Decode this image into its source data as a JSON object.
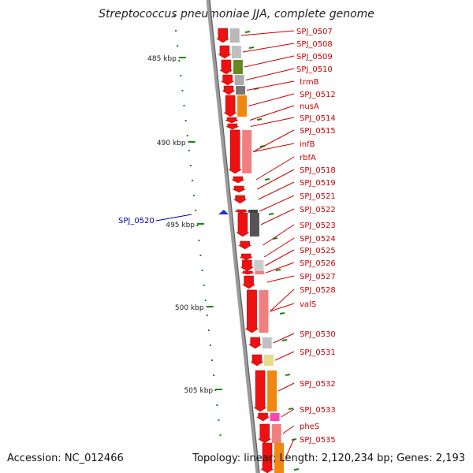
{
  "title": "Streptococcus pneumoniae JJA, complete genome",
  "footer": {
    "accession": "Accession: NC_012466",
    "topology": "Topology: linear; Length: 2,120,234 bp; Genes: 2,193"
  },
  "colors": {
    "cds": "#ee1111",
    "gene_label": "#cc0000",
    "highlight": "#0000aa",
    "tick": "#118811",
    "backbone": "#888888"
  },
  "ruler": {
    "labels": [
      "485 kbp",
      "490 kbp",
      "495 kbp",
      "500 kbp",
      "505 kbp"
    ]
  },
  "highlight_gene": "SPJ_0520",
  "genes": [
    {
      "label": "SPJ_0507"
    },
    {
      "label": "SPJ_0508"
    },
    {
      "label": "SPJ_0509"
    },
    {
      "label": "SPJ_0510"
    },
    {
      "label": "trmB"
    },
    {
      "label": "SPJ_0512"
    },
    {
      "label": "nusA"
    },
    {
      "label": "SPJ_0514"
    },
    {
      "label": "SPJ_0515"
    },
    {
      "label": "infB"
    },
    {
      "label": "rbfA"
    },
    {
      "label": "SPJ_0518"
    },
    {
      "label": "SPJ_0519"
    },
    {
      "label": "SPJ_0521"
    },
    {
      "label": "SPJ_0522"
    },
    {
      "label": "SPJ_0523"
    },
    {
      "label": "SPJ_0524"
    },
    {
      "label": "SPJ_0525"
    },
    {
      "label": "SPJ_0526"
    },
    {
      "label": "SPJ_0527"
    },
    {
      "label": "SPJ_0528"
    },
    {
      "label": "valS"
    },
    {
      "label": "SPJ_0530"
    },
    {
      "label": "SPJ_0531"
    },
    {
      "label": "SPJ_0532"
    },
    {
      "label": "SPJ_0533"
    },
    {
      "label": "pheS"
    },
    {
      "label": "SPJ_0535"
    }
  ]
}
